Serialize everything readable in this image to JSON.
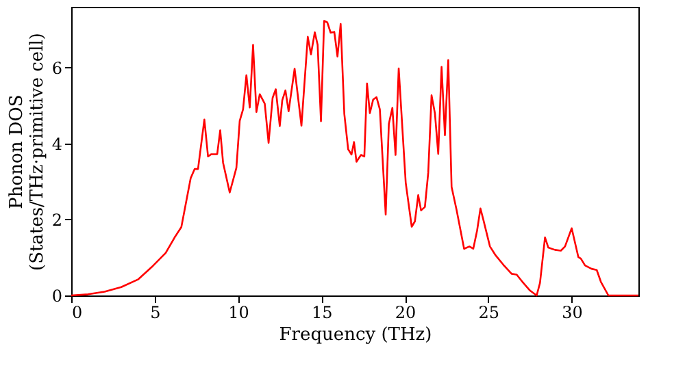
{
  "chart_data": {
    "type": "line",
    "xlabel": "Frequency (THz)",
    "ylabel": "Phonon DOS\n(States/THz·primitive cell)",
    "xlim": [
      0,
      34
    ],
    "ylim": [
      0,
      7.6
    ],
    "xticks": [
      0,
      5,
      10,
      15,
      20,
      25,
      30
    ],
    "yticks": [
      0,
      2,
      4,
      6
    ],
    "grid": false,
    "marker": "none",
    "line_style": "solid",
    "series": [
      {
        "color": "#ff0000",
        "x": [
          0,
          1,
          2,
          3,
          4,
          4.9,
          5.66,
          6.2,
          6.6,
          7.16,
          7.4,
          7.6,
          7.98,
          8.2,
          8.4,
          8.75,
          8.93,
          9.1,
          9.5,
          9.9,
          10.1,
          10.3,
          10.5,
          10.7,
          10.9,
          11.1,
          11.3,
          11.6,
          11.83,
          12.07,
          12.26,
          12.5,
          12.65,
          12.84,
          13.03,
          13.39,
          13.8,
          14.18,
          14.37,
          14.6,
          14.77,
          14.97,
          15.16,
          15.35,
          15.55,
          15.77,
          15.96,
          16.15,
          16.37,
          16.6,
          16.8,
          16.95,
          17.1,
          17.37,
          17.57,
          17.73,
          17.9,
          18.1,
          18.3,
          18.5,
          18.85,
          19.04,
          19.25,
          19.44,
          19.63,
          20.05,
          20.41,
          20.6,
          20.8,
          20.97,
          21.2,
          21.4,
          21.6,
          21.8,
          22.0,
          22.2,
          22.4,
          22.6,
          22.8,
          23.1,
          23.55,
          23.87,
          24.1,
          24.33,
          24.53,
          24.7,
          25.1,
          25.45,
          25.9,
          26.4,
          26.7,
          27.1,
          27.5,
          27.9,
          28.1,
          28.4,
          28.6,
          29.0,
          29.35,
          29.6,
          30.0,
          30.4,
          30.55,
          30.8,
          31.2,
          31.5,
          31.75,
          32.2,
          34
        ],
        "values": [
          0,
          0.03,
          0.1,
          0.22,
          0.42,
          0.78,
          1.12,
          1.53,
          1.8,
          3.09,
          3.33,
          3.33,
          4.63,
          3.66,
          3.72,
          3.72,
          4.35,
          3.5,
          2.71,
          3.36,
          4.6,
          4.9,
          5.8,
          4.95,
          6.6,
          4.83,
          5.3,
          5.05,
          4.02,
          5.2,
          5.43,
          4.46,
          5.14,
          5.4,
          4.85,
          5.97,
          4.47,
          6.81,
          6.35,
          6.93,
          6.6,
          4.59,
          7.23,
          7.19,
          6.92,
          6.94,
          6.29,
          7.15,
          4.78,
          3.85,
          3.71,
          4.04,
          3.52,
          3.7,
          3.66,
          5.58,
          4.8,
          5.16,
          5.22,
          4.9,
          2.13,
          4.52,
          4.94,
          3.7,
          5.98,
          2.97,
          1.81,
          1.95,
          2.64,
          2.24,
          2.33,
          3.23,
          5.27,
          4.8,
          3.73,
          6.02,
          4.22,
          6.2,
          2.86,
          2.25,
          1.23,
          1.29,
          1.23,
          1.71,
          2.29,
          2.0,
          1.29,
          1.05,
          0.81,
          0.57,
          0.55,
          0.33,
          0.13,
          0,
          0.33,
          1.53,
          1.26,
          1.2,
          1.18,
          1.29,
          1.77,
          1.01,
          0.97,
          0.79,
          0.7,
          0.67,
          0.36,
          0,
          0
        ]
      }
    ]
  }
}
